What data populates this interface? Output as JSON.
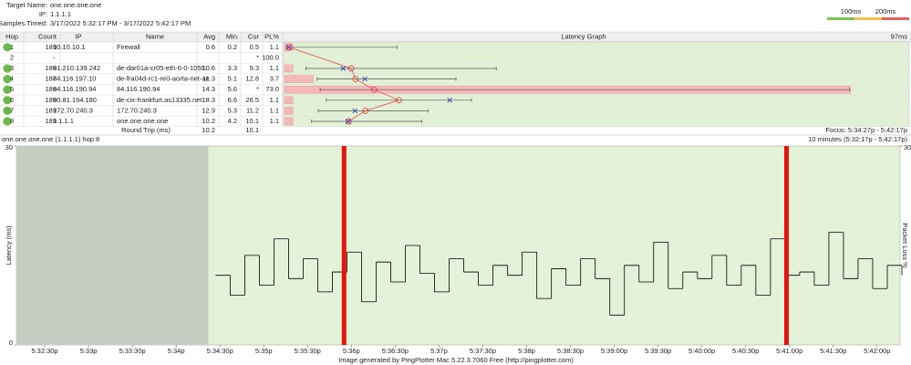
{
  "header": {
    "target_label": "Target Name:",
    "target": "one.one.one.one",
    "ip_label": "IP:",
    "ip": "1.1.1.1",
    "samples_label": "Samples Timed:",
    "samples": "3/17/2022 5:32:17 PM - 3/17/2022 5:42:17 PM"
  },
  "scale_legend": {
    "labels": [
      "100ms",
      "200ms"
    ],
    "colors": [
      "#7cc35a",
      "#f2c14e",
      "#e8605a"
    ]
  },
  "table": {
    "columns": [
      "Hop",
      "Count",
      "IP",
      "Name",
      "Avg",
      "Min",
      "Cur",
      "PL%",
      "Latency Graph"
    ],
    "graph_max": "97ms",
    "rows": [
      [
        "1",
        "189",
        "10.10.10.1",
        "Firewall",
        "0.6",
        "0.2",
        "0.5",
        "1.1"
      ],
      [
        "2",
        null,
        "-",
        null,
        null,
        null,
        "*",
        "100.0"
      ],
      [
        "3",
        "189",
        "81.210.139.242",
        "de-dar01a-cr05-eth-6-0-1050.",
        "10.6",
        "3.3",
        "9.3",
        "1.1"
      ],
      [
        "4",
        "187",
        "84.116.197.10",
        "de-fra04d-rc1-re0-aorta-net-ae",
        "11.3",
        "5.1",
        "12.8",
        "3.7"
      ],
      [
        "5",
        "189",
        "84.116.190.94",
        "84.116.190.94",
        "14.3",
        "5.6",
        "*",
        "73.0"
      ],
      [
        "6",
        "189",
        "80.81.194.180",
        "de-cix-frankfurt.as13335.net",
        "18.3",
        "6.6",
        "26.5",
        "1.1"
      ],
      [
        "7",
        "189",
        "172.70.240.3",
        "172.70.240.3",
        "12.9",
        "5.3",
        "11.2",
        "1.1"
      ],
      [
        "8",
        "189",
        "1.1.1.1",
        "one.one.one.one",
        "10.2",
        "4.2",
        "10.1",
        "1.1"
      ]
    ],
    "round_trip": {
      "label": "Round Trip (ms)",
      "avg": "10.2",
      "cur": "10.1"
    },
    "focus": "Focus: 5:34:27p - 5:42:17p"
  },
  "latency_graph": {
    "xlim": [
      0,
      100
    ],
    "max": [
      18,
      null,
      34,
      27.5,
      91,
      30,
      23,
      22
    ],
    "avg_color": "#e0504a",
    "cur_color": "#3344cc",
    "loss_color": "#f5b8b8"
  },
  "timeline": {
    "title": "one.one.one.one (1.1.1.1) hop 8",
    "range_label": "10 minutes (5:32:17p - 5:42:17p)",
    "y_label": "Latency (ms)",
    "y2_label": "Packet Loss %",
    "ylim": [
      0,
      30
    ],
    "yticks": [
      0,
      30
    ],
    "y2lim": [
      0,
      30
    ],
    "y2ticks": [
      30
    ],
    "xlim": [
      0,
      600
    ],
    "xticks": [
      {
        "value": 13,
        "label": "5:32:30p"
      },
      {
        "value": 43,
        "label": "5:33p"
      },
      {
        "value": 73,
        "label": "5:33:30p"
      },
      {
        "value": 103,
        "label": "5:34p"
      },
      {
        "value": 133,
        "label": "5:34:30p"
      },
      {
        "value": 163,
        "label": "5:35p"
      },
      {
        "value": 193,
        "label": "5:35:30p"
      },
      {
        "value": 223,
        "label": "5:36p"
      },
      {
        "value": 253,
        "label": "5:36:30p"
      },
      {
        "value": 283,
        "label": "5:37p"
      },
      {
        "value": 313,
        "label": "5:37:30p"
      },
      {
        "value": 343,
        "label": "5:38p"
      },
      {
        "value": 373,
        "label": "5:38:30p"
      },
      {
        "value": 403,
        "label": "5:39:00p"
      },
      {
        "value": 433,
        "label": "5:39:30p"
      },
      {
        "value": 463,
        "label": "5:40:00p"
      },
      {
        "value": 493,
        "label": "5:40:30p"
      },
      {
        "value": 523,
        "label": "5:41:00p"
      },
      {
        "value": 553,
        "label": "5:41:30p"
      },
      {
        "value": 583,
        "label": "5:42:00p"
      }
    ],
    "x": [
      130,
      140,
      150,
      160,
      170,
      180,
      190,
      200,
      210,
      220,
      230,
      240,
      250,
      260,
      270,
      280,
      290,
      300,
      310,
      320,
      330,
      340,
      350,
      360,
      370,
      380,
      390,
      400,
      410,
      420,
      430,
      440,
      450,
      460,
      470,
      480,
      490,
      500,
      510,
      520,
      530,
      540,
      550,
      560,
      570,
      580,
      590,
      600
    ],
    "values": [
      10.5,
      7.5,
      13.5,
      9,
      16,
      10,
      13,
      8,
      11,
      14,
      6.5,
      12.5,
      9.5,
      15,
      10.8,
      8,
      13,
      11,
      9,
      12,
      10.5,
      14,
      7,
      11.5,
      9,
      13,
      10,
      4.5,
      12,
      9.5,
      15.5,
      8.5,
      11,
      10,
      13.5,
      9,
      12,
      7.5,
      16,
      10.5,
      11,
      9,
      17,
      10,
      13,
      8.5,
      12,
      10.5
    ],
    "line_color": "#000000",
    "loss": {
      "x": [
        218,
        521
      ],
      "values": [
        30,
        30
      ],
      "color": "#e8120c"
    },
    "footer": "Image generated by PingPlotter Mac 5.22.3.7060 Free (http://pingplotter.com)"
  }
}
